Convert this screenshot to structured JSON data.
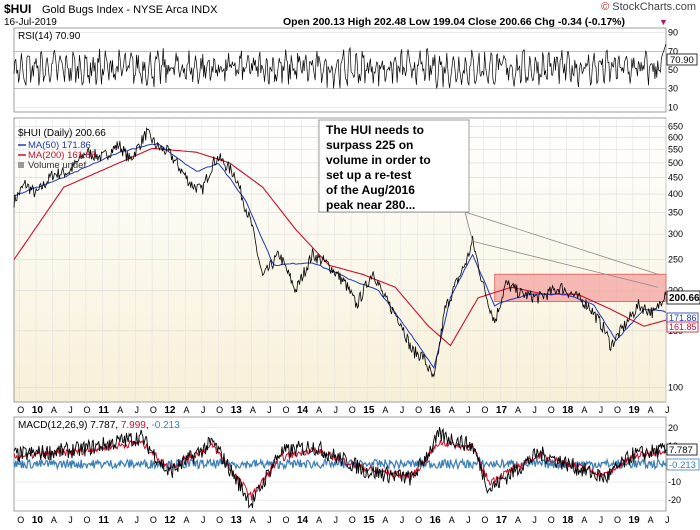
{
  "header": {
    "symbol": "$HUI",
    "name": "Gold Bugs Index - NYSE Arca INDX",
    "date": "16-Jul-2019",
    "ohlc": "Open 200.13  High 202.48  Low 199.04  Close 200.66  Chg -0.34 (-0.17%)",
    "chg_marker": "▼",
    "watermark_prefix": "© ",
    "watermark": "StockCharts.com"
  },
  "rsi_panel": {
    "label": "RSI(14) 70.90",
    "last_value": "70.90",
    "ticks": [
      "90",
      "70",
      "50",
      "30",
      "10"
    ],
    "values": [
      90,
      70,
      50,
      30,
      10
    ]
  },
  "price_panel": {
    "legend": {
      "hui": "$HUI (Daily) 200.66",
      "ma50": "MA(50) 171.86",
      "ma200": "MA(200) 161.85",
      "volume": "Volume undef"
    },
    "y_ticks": [
      "650",
      "600",
      "550",
      "500",
      "450",
      "400",
      "350",
      "300",
      "250",
      "200",
      "150",
      "100"
    ],
    "y_values": [
      650,
      600,
      550,
      500,
      450,
      400,
      350,
      300,
      250,
      200,
      150,
      100
    ],
    "last_value": "200.66",
    "ma50_value": "171.86",
    "ma200_value": "161.85",
    "callout": "The HUI needs to surpass 225 on volume in order to set up a re-test of the Aug/2016 peak near 280..."
  },
  "macd_panel": {
    "label": "MACD(12,26,9) 7.787, 7.999, -0.213",
    "label_macd": "MACD(12,26,9) 7.787",
    "label_signal": "7.999",
    "label_hist": "-0.213",
    "ticks": [
      "20",
      "10",
      "0",
      "-10",
      "-20"
    ],
    "values": [
      20,
      10,
      0,
      -10,
      -20
    ],
    "macd_value": "7.787",
    "hist_value": "-0.213"
  },
  "x_axis": {
    "labels": [
      "O",
      "10",
      "A",
      "J",
      "O",
      "11",
      "A",
      "J",
      "O",
      "12",
      "A",
      "J",
      "O",
      "13",
      "A",
      "J",
      "O",
      "14",
      "A",
      "J",
      "O",
      "15",
      "A",
      "J",
      "O",
      "16",
      "A",
      "J",
      "O",
      "17",
      "A",
      "J",
      "O",
      "18",
      "A",
      "J",
      "O",
      "19",
      "A",
      "J"
    ],
    "year_labels": [
      "10",
      "11",
      "12",
      "13",
      "14",
      "15",
      "16",
      "17",
      "18",
      "19"
    ]
  },
  "chart_data": {
    "type": "line",
    "x_range": [
      "2009-09",
      "2019-07"
    ],
    "y_scale": "log",
    "ylim": [
      90,
      690
    ],
    "series": [
      {
        "name": "$HUI (Daily)",
        "x": [
          "2009-09",
          "2009-11",
          "2010-01",
          "2010-04",
          "2010-07",
          "2010-10",
          "2011-01",
          "2011-04",
          "2011-06",
          "2011-09",
          "2011-11",
          "2012-01",
          "2012-05",
          "2012-07",
          "2012-09",
          "2012-10",
          "2013-01",
          "2013-04",
          "2013-06",
          "2013-09",
          "2013-12",
          "2014-03",
          "2014-06",
          "2014-09",
          "2014-11",
          "2015-02",
          "2015-04",
          "2015-07",
          "2015-09",
          "2015-11",
          "2016-01",
          "2016-03",
          "2016-05",
          "2016-07",
          "2016-08",
          "2016-10",
          "2016-12",
          "2017-02",
          "2017-05",
          "2017-08",
          "2017-12",
          "2018-02",
          "2018-05",
          "2018-08",
          "2018-09",
          "2018-12",
          "2019-02",
          "2019-05",
          "2019-07"
        ],
        "values": [
          380,
          430,
          400,
          460,
          470,
          540,
          520,
          570,
          510,
          620,
          560,
          540,
          430,
          410,
          500,
          520,
          460,
          320,
          220,
          260,
          200,
          260,
          240,
          210,
          180,
          230,
          190,
          160,
          130,
          125,
          105,
          175,
          210,
          250,
          285,
          205,
          160,
          210,
          195,
          190,
          205,
          195,
          180,
          150,
          135,
          160,
          180,
          170,
          200.66
        ]
      },
      {
        "name": "MA(50)",
        "x": [
          "2009-09",
          "2010-06",
          "2011-04",
          "2011-11",
          "2012-06",
          "2012-10",
          "2013-03",
          "2013-08",
          "2014-03",
          "2014-09",
          "2015-03",
          "2015-09",
          "2016-01",
          "2016-04",
          "2016-08",
          "2016-12",
          "2017-06",
          "2018-01",
          "2018-06",
          "2018-10",
          "2019-03",
          "2019-07"
        ],
        "values": [
          395,
          450,
          540,
          575,
          470,
          500,
          380,
          240,
          245,
          220,
          200,
          145,
          115,
          190,
          260,
          180,
          195,
          195,
          180,
          140,
          175,
          171.86
        ]
      },
      {
        "name": "MA(200)",
        "x": [
          "2009-09",
          "2010-06",
          "2011-04",
          "2011-10",
          "2012-06",
          "2012-12",
          "2013-06",
          "2013-12",
          "2014-06",
          "2014-12",
          "2015-06",
          "2015-12",
          "2016-04",
          "2016-09",
          "2017-03",
          "2017-09",
          "2018-03",
          "2018-09",
          "2019-03",
          "2019-07"
        ],
        "values": [
          250,
          420,
          500,
          555,
          540,
          500,
          420,
          310,
          240,
          225,
          205,
          155,
          135,
          190,
          205,
          195,
          195,
          175,
          155,
          161.85
        ]
      }
    ],
    "horizontal_band": {
      "x": [
        "2016-12",
        "2019-07"
      ],
      "y": [
        185,
        225
      ]
    },
    "macd": {
      "x": [
        "2009-09",
        "2010-09",
        "2011-08",
        "2012-01",
        "2012-09",
        "2013-04",
        "2013-09",
        "2014-03",
        "2015-01",
        "2015-09",
        "2016-02",
        "2016-08",
        "2016-11",
        "2017-08",
        "2018-08",
        "2019-01",
        "2019-07"
      ],
      "macd": [
        5,
        8,
        15,
        -5,
        12,
        -22,
        6,
        10,
        -4,
        -8,
        16,
        10,
        -14,
        6,
        -8,
        5,
        7.787
      ],
      "signal": [
        4,
        7,
        12,
        -2,
        10,
        -18,
        3,
        8,
        -3,
        -7,
        12,
        9,
        -10,
        5,
        -6,
        4,
        7.999
      ],
      "histogram_last": -0.213
    },
    "rsi": {
      "last": 70.9,
      "range": [
        10,
        90
      ]
    }
  }
}
